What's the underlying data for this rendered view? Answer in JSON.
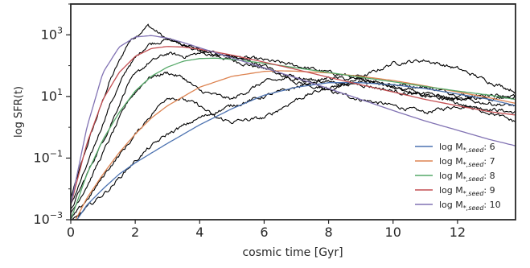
{
  "chart_data": {
    "type": "line",
    "xlabel": "cosmic time [Gyr]",
    "ylabel": "log SFR(t)",
    "y_scale": "log",
    "xlim": [
      0,
      13.8
    ],
    "ylim": [
      0.001,
      10000
    ],
    "x_ticks": [
      {
        "value": 0,
        "label": "0"
      },
      {
        "value": 2,
        "label": "2"
      },
      {
        "value": 4,
        "label": "4"
      },
      {
        "value": 6,
        "label": "6"
      },
      {
        "value": 8,
        "label": "8"
      },
      {
        "value": 10,
        "label": "10"
      },
      {
        "value": 12,
        "label": "12"
      }
    ],
    "y_ticks": [
      {
        "value": 0.001,
        "base": "10",
        "exp": "−3"
      },
      {
        "value": 0.1,
        "base": "10",
        "exp": "−1"
      },
      {
        "value": 10,
        "base": "10",
        "exp": "1"
      },
      {
        "value": 1000,
        "base": "10",
        "exp": "3"
      }
    ],
    "grid": false,
    "legend_position": "bottom-right",
    "series": [
      {
        "name_main": "log M",
        "name_sub": "*,seed",
        "name_val": ": 6",
        "color": "#4c72b0",
        "x": [
          0,
          0.5,
          1,
          1.5,
          2,
          3,
          4,
          5,
          6,
          7,
          8,
          9,
          10,
          11,
          12,
          13,
          13.8
        ],
        "y": [
          0.0005,
          0.003,
          0.01,
          0.03,
          0.07,
          0.3,
          1.2,
          4,
          11,
          20,
          28,
          28,
          24,
          18,
          12,
          8,
          5
        ]
      },
      {
        "name_main": "log M",
        "name_sub": "*,seed",
        "name_val": ": 7",
        "color": "#dd8452",
        "x": [
          0,
          0.5,
          1,
          1.5,
          2,
          2.5,
          3,
          4,
          5,
          6,
          6.5,
          7,
          8,
          9,
          10,
          11,
          12,
          13,
          13.8
        ],
        "y": [
          0.0005,
          0.005,
          0.03,
          0.15,
          0.6,
          2,
          5,
          20,
          45,
          65,
          68,
          66,
          58,
          45,
          33,
          22,
          14,
          9,
          6
        ]
      },
      {
        "name_main": "log M",
        "name_sub": "*,seed",
        "name_val": ": 8",
        "color": "#55a868",
        "x": [
          0,
          0.5,
          1,
          1.5,
          2,
          2.5,
          3,
          3.5,
          4,
          4.5,
          5,
          6,
          7,
          8,
          9,
          10,
          11,
          12,
          13,
          13.8
        ],
        "y": [
          0.001,
          0.03,
          0.4,
          3,
          15,
          45,
          90,
          140,
          170,
          175,
          160,
          120,
          85,
          60,
          42,
          30,
          21,
          15,
          11,
          8
        ]
      },
      {
        "name_main": "log M",
        "name_sub": "*,seed",
        "name_val": ": 9",
        "color": "#c44e52",
        "x": [
          0,
          0.5,
          1,
          1.5,
          2,
          2.5,
          3,
          3.5,
          4,
          5,
          6,
          7,
          8,
          9,
          10,
          11,
          12,
          13,
          13.8
        ],
        "y": [
          0.003,
          0.3,
          8,
          60,
          200,
          360,
          420,
          400,
          340,
          220,
          130,
          75,
          42,
          24,
          14,
          8,
          5,
          3.2,
          2.5
        ]
      },
      {
        "name_main": "log M",
        "name_sub": "*,seed",
        "name_val": ": 10",
        "color": "#8172b3",
        "x": [
          0,
          0.5,
          1,
          1.5,
          2,
          2.5,
          3,
          3.5,
          4,
          5,
          6,
          7,
          8,
          9,
          10,
          11,
          12,
          13,
          13.8
        ],
        "y": [
          0.003,
          1,
          60,
          400,
          850,
          950,
          780,
          560,
          380,
          180,
          85,
          40,
          18,
          8,
          3.5,
          1.6,
          0.8,
          0.4,
          0.25
        ]
      }
    ],
    "noisy_series": [
      {
        "color": "#000000",
        "x": [
          0,
          0.6,
          1.2,
          1.8,
          2.4,
          3,
          4,
          5,
          6,
          7,
          8,
          9,
          10,
          11,
          12,
          13,
          13.8
        ],
        "y": [
          0.005,
          0.5,
          30,
          600,
          2000,
          700,
          300,
          150,
          80,
          40,
          15,
          8,
          5,
          3,
          5,
          4,
          3
        ]
      },
      {
        "color": "#000000",
        "x": [
          0,
          0.6,
          1.2,
          1.8,
          2.4,
          3,
          3.5,
          4,
          5,
          6,
          7,
          8,
          9,
          10,
          11,
          12,
          13,
          13.8
        ],
        "y": [
          0.003,
          0.1,
          5,
          100,
          500,
          700,
          500,
          300,
          200,
          150,
          100,
          60,
          40,
          25,
          20,
          12,
          8,
          10
        ]
      },
      {
        "color": "#000000",
        "x": [
          0,
          0.6,
          1.2,
          1.8,
          2.4,
          3,
          3.5,
          4,
          5,
          6,
          7,
          8,
          9,
          10,
          11,
          12,
          13,
          13.8
        ],
        "y": [
          0.002,
          0.05,
          1,
          30,
          120,
          250,
          200,
          250,
          200,
          100,
          30,
          15,
          40,
          120,
          150,
          80,
          30,
          15
        ]
      },
      {
        "color": "#000000",
        "x": [
          0,
          0.6,
          1.2,
          1.8,
          2.4,
          3,
          3.5,
          4,
          5,
          6,
          7,
          8,
          9,
          10,
          11,
          12,
          13,
          13.8
        ],
        "y": [
          0.0015,
          0.02,
          0.4,
          8,
          40,
          60,
          40,
          15,
          8,
          30,
          40,
          30,
          25,
          15,
          10,
          8,
          12,
          10
        ]
      },
      {
        "color": "#000000",
        "x": [
          0,
          0.6,
          1.2,
          1.8,
          2.4,
          3,
          3.5,
          4,
          4.5,
          5,
          6,
          7,
          8,
          9,
          10,
          11,
          12,
          13,
          13.8
        ],
        "y": [
          0.001,
          0.006,
          0.05,
          0.3,
          2,
          10,
          8,
          5,
          2,
          1.5,
          2,
          8,
          20,
          30,
          20,
          12,
          8,
          6,
          5
        ]
      },
      {
        "color": "#000000",
        "x": [
          0,
          0.6,
          1.2,
          1.8,
          2.4,
          3,
          4,
          5,
          6,
          7,
          8,
          9,
          10,
          11,
          12,
          13,
          13.8
        ],
        "y": [
          0.0008,
          0.003,
          0.01,
          0.05,
          0.2,
          0.6,
          2,
          5,
          10,
          20,
          40,
          35,
          20,
          12,
          6,
          3,
          1.5
        ]
      }
    ]
  }
}
